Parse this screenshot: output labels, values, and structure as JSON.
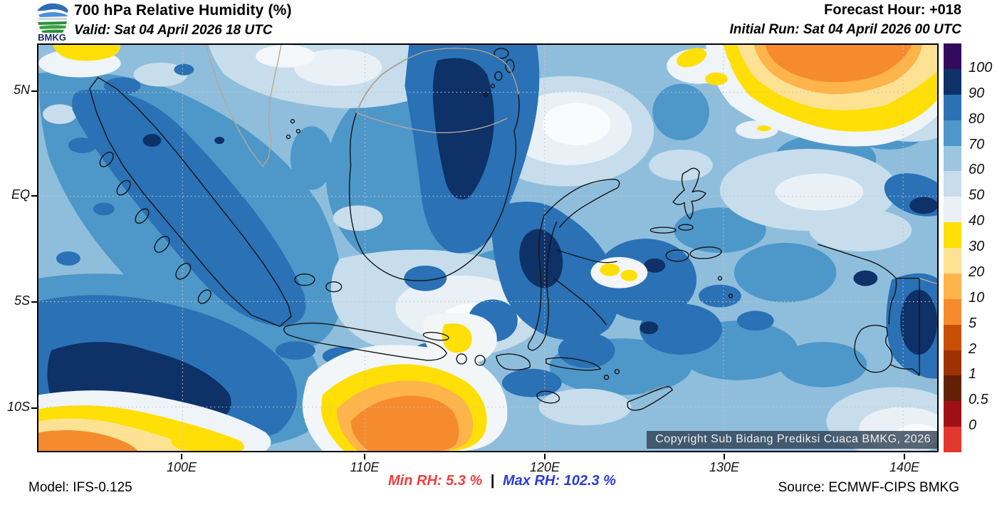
{
  "header": {
    "title": "700 hPa Relative Humidity (%)",
    "valid": "Valid: Sat 04 April 2026 18 UTC",
    "forecast_hour": "Forecast Hour: +018",
    "initial_run": "Initial Run: Sat 04 April 2026 00 UTC",
    "logo_text": "BMKG"
  },
  "axes": {
    "lat_labels": [
      "5N",
      "EQ",
      "5S",
      "10S"
    ],
    "lon_labels": [
      "100E",
      "110E",
      "120E",
      "130E",
      "140E"
    ]
  },
  "colorbar": {
    "ticks": [
      "100",
      "90",
      "80",
      "70",
      "60",
      "50",
      "40",
      "30",
      "20",
      "10",
      "5",
      "2",
      "1",
      "0.5",
      "0"
    ],
    "colors": [
      "#340a5c",
      "#0e3168",
      "#2a71b5",
      "#4e97c9",
      "#9cc6e0",
      "#c7ddec",
      "#e9f1f7",
      "#ffdf05",
      "#fde293",
      "#fdb44a",
      "#f68b2e",
      "#c84f05",
      "#9d3204",
      "#632005",
      "#9e1016",
      "#e2372e"
    ]
  },
  "map": {
    "copyright": "Copyright Sub Bidang Prediksi Cuaca BMKG, 2026"
  },
  "footer": {
    "model": "Model: IFS-0.125",
    "min_rh": "Min RH:  5.3 %",
    "separator": "|",
    "max_rh": "Max RH: 102.3 %",
    "min_color": "#f23d3d",
    "max_color": "#2a3bdb",
    "source": "Source: ECMWF-CIPS BMKG"
  },
  "chart_data": {
    "type": "heatmap",
    "title": "700 hPa Relative Humidity (%)",
    "units": "%",
    "levels": [
      0,
      0.5,
      1,
      2,
      5,
      10,
      20,
      30,
      40,
      50,
      60,
      70,
      80,
      90,
      100
    ],
    "min_value": 5.3,
    "max_value": 102.3,
    "lat_ticks": [
      "5N",
      "EQ",
      "5S",
      "10S"
    ],
    "lon_ticks": [
      "100E",
      "110E",
      "120E",
      "130E",
      "140E"
    ],
    "legend_position": "right"
  }
}
